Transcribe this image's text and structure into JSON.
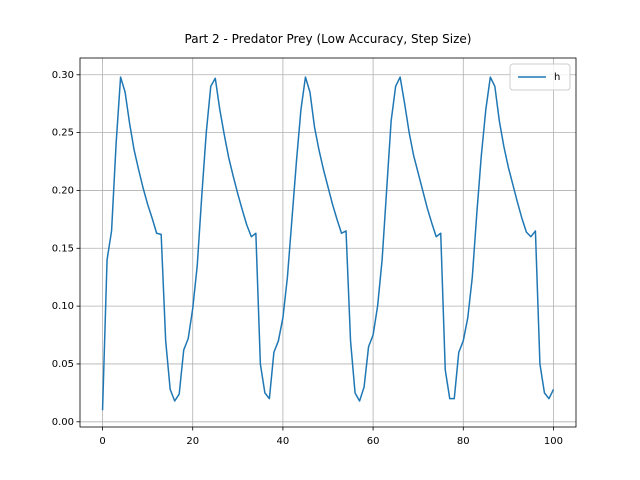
{
  "chart_data": {
    "type": "line",
    "title": "Part 2 - Predator Prey (Low Accuracy, Step Size)",
    "x": [
      0,
      1,
      2,
      3,
      4,
      5,
      6,
      7,
      8,
      9,
      10,
      11,
      12,
      13,
      14,
      15,
      16,
      17,
      18,
      19,
      20,
      21,
      22,
      23,
      24,
      25,
      26,
      27,
      28,
      29,
      30,
      31,
      32,
      33,
      34,
      35,
      36,
      37,
      38,
      39,
      40,
      41,
      42,
      43,
      44,
      45,
      46,
      47,
      48,
      49,
      50,
      51,
      52,
      53,
      54,
      55,
      56,
      57,
      58,
      59,
      60,
      61,
      62,
      63,
      64,
      65,
      66,
      67,
      68,
      69,
      70,
      71,
      72,
      73,
      74,
      75,
      76,
      77,
      78,
      79,
      80,
      81,
      82,
      83,
      84,
      85,
      86,
      87,
      88,
      89,
      90,
      91,
      92,
      93,
      94,
      95,
      96,
      97,
      98,
      99,
      100
    ],
    "series": [
      {
        "name": "h",
        "color": "#1f77b4",
        "values": [
          0.01,
          0.14,
          0.165,
          0.24,
          0.298,
          0.285,
          0.258,
          0.235,
          0.218,
          0.202,
          0.188,
          0.176,
          0.163,
          0.162,
          0.07,
          0.028,
          0.018,
          0.024,
          0.062,
          0.072,
          0.098,
          0.135,
          0.195,
          0.25,
          0.29,
          0.297,
          0.27,
          0.248,
          0.228,
          0.212,
          0.197,
          0.183,
          0.17,
          0.16,
          0.163,
          0.05,
          0.025,
          0.02,
          0.06,
          0.07,
          0.09,
          0.125,
          0.175,
          0.225,
          0.27,
          0.298,
          0.285,
          0.255,
          0.235,
          0.218,
          0.203,
          0.188,
          0.175,
          0.163,
          0.165,
          0.07,
          0.025,
          0.018,
          0.03,
          0.065,
          0.075,
          0.1,
          0.14,
          0.2,
          0.26,
          0.29,
          0.298,
          0.275,
          0.25,
          0.23,
          0.215,
          0.2,
          0.185,
          0.172,
          0.16,
          0.163,
          0.045,
          0.02,
          0.02,
          0.06,
          0.07,
          0.09,
          0.125,
          0.18,
          0.23,
          0.27,
          0.298,
          0.29,
          0.26,
          0.238,
          0.22,
          0.205,
          0.19,
          0.176,
          0.164,
          0.16,
          0.165,
          0.05,
          0.025,
          0.02,
          0.028
        ]
      }
    ],
    "xlim": [
      -5,
      105
    ],
    "xticks": [
      0,
      20,
      40,
      60,
      80,
      100
    ],
    "ylim": [
      -0.0045,
      0.3145
    ],
    "yticks": [
      {
        "value": 0,
        "label": "0.00"
      },
      {
        "value": 0.05,
        "label": "0.05"
      },
      {
        "value": 0.1,
        "label": "0.10"
      },
      {
        "value": 0.15,
        "label": "0.15"
      },
      {
        "value": 0.2,
        "label": "0.20"
      },
      {
        "value": 0.25,
        "label": "0.25"
      },
      {
        "value": 0.3,
        "label": "0.30"
      }
    ],
    "grid": true,
    "legend": "upper right"
  }
}
